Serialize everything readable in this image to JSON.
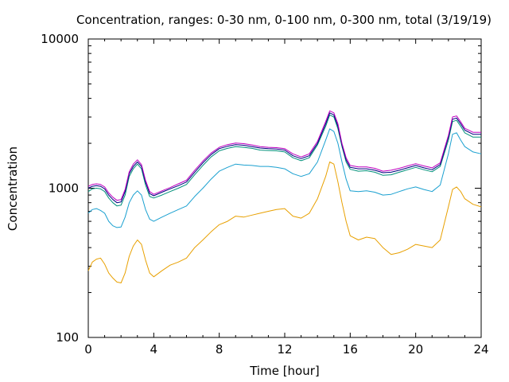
{
  "chart_data": {
    "type": "line",
    "title": "Concentration, ranges: 0-30 nm, 0-100 nm, 0-300 nm, total (3/19/19)",
    "xlabel": "Time [hour]",
    "ylabel": "Concentration",
    "xlim": [
      0,
      24
    ],
    "ylim": [
      100,
      10000
    ],
    "yscale": "log",
    "xticks": [
      0,
      4,
      8,
      12,
      16,
      20,
      24
    ],
    "xtick_labels": [
      "0",
      "4",
      "8",
      "12",
      "16",
      "20",
      "24"
    ],
    "yticks": [
      100,
      1000,
      10000
    ],
    "ytick_labels": [
      "100",
      "1000",
      "10000"
    ],
    "grid": false,
    "x": [
      0,
      0.25,
      0.5,
      0.75,
      1,
      1.25,
      1.5,
      1.75,
      2,
      2.25,
      2.5,
      2.75,
      3,
      3.25,
      3.5,
      3.75,
      4,
      4.5,
      5,
      5.5,
      6,
      6.5,
      7,
      7.5,
      8,
      8.5,
      9,
      9.5,
      10,
      10.5,
      11,
      11.5,
      12,
      12.5,
      13,
      13.5,
      14,
      14.5,
      14.75,
      15,
      15.25,
      15.5,
      15.75,
      16,
      16.5,
      17,
      17.5,
      18,
      18.5,
      19,
      19.5,
      20,
      20.5,
      21,
      21.5,
      22,
      22.25,
      22.5,
      22.75,
      23,
      23.5,
      24
    ],
    "series": [
      {
        "color": "#e8a000",
        "values": [
          280,
          320,
          335,
          340,
          310,
          270,
          250,
          235,
          232,
          270,
          350,
          410,
          450,
          420,
          330,
          270,
          255,
          280,
          305,
          320,
          340,
          400,
          450,
          510,
          570,
          600,
          650,
          640,
          660,
          680,
          700,
          720,
          730,
          650,
          630,
          680,
          850,
          1200,
          1500,
          1450,
          1100,
          800,
          600,
          480,
          450,
          470,
          460,
          400,
          360,
          370,
          390,
          420,
          410,
          400,
          450,
          750,
          980,
          1020,
          950,
          850,
          780,
          750
        ]
      },
      {
        "color": "#1aa0d0",
        "values": [
          680,
          720,
          730,
          710,
          680,
          600,
          560,
          545,
          550,
          640,
          800,
          900,
          960,
          900,
          720,
          620,
          600,
          640,
          680,
          720,
          760,
          880,
          1000,
          1150,
          1300,
          1380,
          1450,
          1430,
          1420,
          1400,
          1400,
          1380,
          1350,
          1250,
          1200,
          1250,
          1500,
          2100,
          2500,
          2400,
          2000,
          1500,
          1150,
          960,
          950,
          960,
          940,
          900,
          910,
          950,
          990,
          1020,
          980,
          950,
          1050,
          1700,
          2300,
          2350,
          2100,
          1900,
          1750,
          1700
        ]
      },
      {
        "color": "#00907a",
        "values": [
          950,
          990,
          1000,
          990,
          950,
          860,
          800,
          760,
          770,
          900,
          1200,
          1350,
          1450,
          1350,
          1050,
          880,
          860,
          900,
          950,
          1000,
          1060,
          1230,
          1420,
          1620,
          1780,
          1850,
          1900,
          1880,
          1850,
          1800,
          1790,
          1780,
          1750,
          1600,
          1530,
          1600,
          1950,
          2600,
          3100,
          3000,
          2500,
          1900,
          1500,
          1340,
          1300,
          1310,
          1280,
          1220,
          1230,
          1280,
          1330,
          1380,
          1330,
          1290,
          1400,
          2100,
          2800,
          2850,
          2600,
          2350,
          2200,
          2200
        ]
      },
      {
        "color": "#000080",
        "values": [
          1000,
          1030,
          1040,
          1030,
          990,
          900,
          840,
          800,
          810,
          950,
          1250,
          1400,
          1500,
          1400,
          1100,
          920,
          890,
          940,
          990,
          1040,
          1100,
          1280,
          1480,
          1680,
          1840,
          1910,
          1960,
          1940,
          1900,
          1860,
          1840,
          1830,
          1800,
          1650,
          1580,
          1650,
          2000,
          2700,
          3200,
          3100,
          2600,
          1950,
          1550,
          1380,
          1350,
          1350,
          1320,
          1270,
          1280,
          1320,
          1370,
          1420,
          1370,
          1330,
          1440,
          2200,
          2900,
          2950,
          2700,
          2450,
          2300,
          2300
        ]
      },
      {
        "color": "#c000c0",
        "values": [
          1030,
          1060,
          1070,
          1060,
          1020,
          930,
          870,
          830,
          840,
          980,
          1290,
          1450,
          1550,
          1440,
          1130,
          950,
          910,
          960,
          1010,
          1070,
          1130,
          1320,
          1520,
          1720,
          1880,
          1960,
          2010,
          1990,
          1950,
          1900,
          1880,
          1870,
          1840,
          1700,
          1620,
          1700,
          2060,
          2800,
          3300,
          3200,
          2700,
          2000,
          1600,
          1420,
          1390,
          1390,
          1360,
          1300,
          1320,
          1360,
          1410,
          1460,
          1410,
          1370,
          1480,
          2260,
          3000,
          3050,
          2780,
          2520,
          2370,
          2370
        ]
      }
    ]
  }
}
